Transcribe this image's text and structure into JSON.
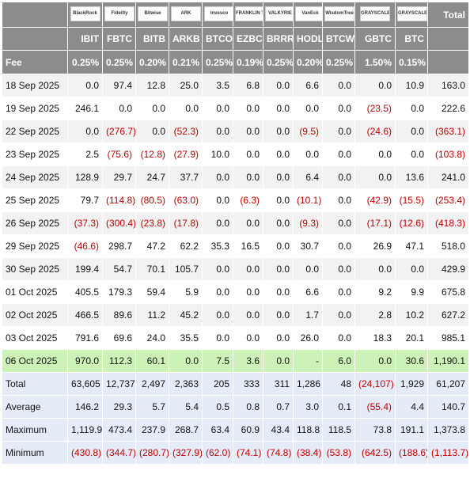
{
  "header": {
    "logos": [
      "BlackRock",
      "Fidelity",
      "Bitwise",
      "ARK",
      "Invesco",
      "FRANKLIN TEMPLETON",
      "VALKYRIE",
      "VanEck",
      "WisdomTree",
      "GRAYSCALE",
      "GRAYSCALE"
    ],
    "total_label": "Total"
  },
  "table": {
    "columns": [
      "IBIT",
      "FBTC",
      "BITB",
      "ARKB",
      "BTCO",
      "EZBC",
      "BRRR",
      "HODL",
      "BTCW",
      "GBTC",
      "BTC"
    ],
    "fee_label": "Fee",
    "fees": [
      "0.25%",
      "0.25%",
      "0.20%",
      "0.21%",
      "0.25%",
      "0.19%",
      "0.25%",
      "0.20%",
      "0.25%",
      "1.50%",
      "0.15%"
    ],
    "rows": [
      {
        "label": "18 Sep 2025",
        "values": [
          "0.0",
          "97.4",
          "12.8",
          "25.0",
          "3.5",
          "6.8",
          "0.0",
          "6.6",
          "0.0",
          "0.0",
          "10.9",
          "163.0"
        ]
      },
      {
        "label": "19 Sep 2025",
        "values": [
          "246.1",
          "0.0",
          "0.0",
          "0.0",
          "0.0",
          "0.0",
          "0.0",
          "0.0",
          "0.0",
          "(23.5)",
          "0.0",
          "222.6"
        ]
      },
      {
        "label": "22 Sep 2025",
        "values": [
          "0.0",
          "(276.7)",
          "0.0",
          "(52.3)",
          "0.0",
          "0.0",
          "0.0",
          "(9.5)",
          "0.0",
          "(24.6)",
          "0.0",
          "(363.1)"
        ]
      },
      {
        "label": "23 Sep 2025",
        "values": [
          "2.5",
          "(75.6)",
          "(12.8)",
          "(27.9)",
          "10.0",
          "0.0",
          "0.0",
          "0.0",
          "0.0",
          "0.0",
          "0.0",
          "(103.8)"
        ]
      },
      {
        "label": "24 Sep 2025",
        "values": [
          "128.9",
          "29.7",
          "24.7",
          "37.7",
          "0.0",
          "0.0",
          "0.0",
          "6.4",
          "0.0",
          "0.0",
          "13.6",
          "241.0"
        ]
      },
      {
        "label": "25 Sep 2025",
        "values": [
          "79.7",
          "(114.8)",
          "(80.5)",
          "(63.0)",
          "0.0",
          "(6.3)",
          "0.0",
          "(10.1)",
          "0.0",
          "(42.9)",
          "(15.5)",
          "(253.4)"
        ]
      },
      {
        "label": "26 Sep 2025",
        "values": [
          "(37.3)",
          "(300.4)",
          "(23.8)",
          "(17.8)",
          "0.0",
          "0.0",
          "0.0",
          "(9.3)",
          "0.0",
          "(17.1)",
          "(12.6)",
          "(418.3)"
        ]
      },
      {
        "label": "29 Sep 2025",
        "values": [
          "(46.6)",
          "298.7",
          "47.2",
          "62.2",
          "35.3",
          "16.5",
          "0.0",
          "30.7",
          "0.0",
          "26.9",
          "47.1",
          "518.0"
        ]
      },
      {
        "label": "30 Sep 2025",
        "values": [
          "199.4",
          "54.7",
          "70.1",
          "105.7",
          "0.0",
          "0.0",
          "0.0",
          "0.0",
          "0.0",
          "0.0",
          "0.0",
          "429.9"
        ]
      },
      {
        "label": "01 Oct 2025",
        "values": [
          "405.5",
          "179.3",
          "59.4",
          "5.9",
          "0.0",
          "0.0",
          "0.0",
          "6.6",
          "0.0",
          "9.2",
          "9.9",
          "675.8"
        ]
      },
      {
        "label": "02 Oct 2025",
        "values": [
          "466.5",
          "89.6",
          "11.2",
          "45.2",
          "0.0",
          "0.0",
          "0.0",
          "1.7",
          "0.0",
          "2.8",
          "10.2",
          "627.2"
        ]
      },
      {
        "label": "03 Oct 2025",
        "values": [
          "791.6",
          "69.6",
          "24.0",
          "35.5",
          "0.0",
          "0.0",
          "0.0",
          "26.0",
          "0.0",
          "18.3",
          "20.1",
          "985.1"
        ]
      },
      {
        "label": "06 Oct 2025",
        "highlight": true,
        "values": [
          "970.0",
          "112.3",
          "60.1",
          "0.0",
          "7.5",
          "3.6",
          "0.0",
          "-",
          "6.0",
          "0.0",
          "30.6",
          "1,190.1"
        ]
      }
    ],
    "summary": [
      {
        "label": "Total",
        "values": [
          "63,605",
          "12,737",
          "2,497",
          "2,363",
          "205",
          "333",
          "311",
          "1,286",
          "48",
          "(24,107)",
          "1,929",
          "61,207"
        ]
      },
      {
        "label": "Average",
        "values": [
          "146.2",
          "29.3",
          "5.7",
          "5.4",
          "0.5",
          "0.8",
          "0.7",
          "3.0",
          "0.1",
          "(55.4)",
          "4.4",
          "140.7"
        ]
      },
      {
        "label": "Maximum",
        "values": [
          "1,119.9",
          "473.4",
          "237.9",
          "268.7",
          "63.4",
          "60.9",
          "43.4",
          "118.8",
          "118.5",
          "73.8",
          "191.1",
          "1,373.8"
        ]
      },
      {
        "label": "Minimum",
        "values": [
          "(430.8)",
          "(344.7)",
          "(280.7)",
          "(327.9)",
          "(62.0)",
          "(74.1)",
          "(74.8)",
          "(38.4)",
          "(53.8)",
          "(642.5)",
          "(188.6)",
          "(1,113.7)"
        ]
      }
    ]
  }
}
